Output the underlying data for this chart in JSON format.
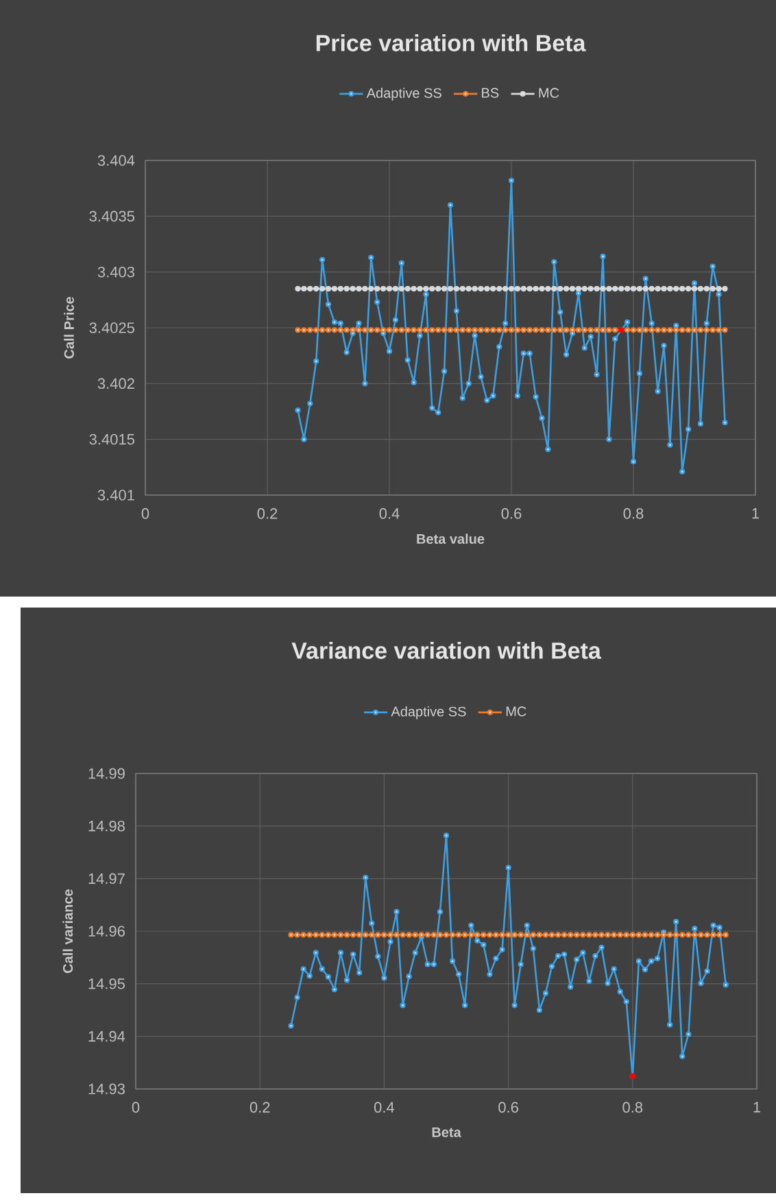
{
  "chart_data": [
    {
      "type": "line",
      "title": "Price  variation with Beta",
      "xlabel": "Beta value",
      "ylabel": "Call Price",
      "marker": "circle",
      "grid": true,
      "legend": "top",
      "xlim": [
        0,
        1
      ],
      "ylim": [
        3.401,
        3.404
      ],
      "xticks": [
        0,
        0.2,
        0.4,
        0.6,
        0.8,
        1
      ],
      "yticks": [
        3.401,
        3.4015,
        3.402,
        3.4025,
        3.403,
        3.4035,
        3.404
      ],
      "x": [
        0.25,
        0.26,
        0.27,
        0.28,
        0.29,
        0.3,
        0.31,
        0.32,
        0.33,
        0.34,
        0.35,
        0.36,
        0.37,
        0.38,
        0.39,
        0.4,
        0.41,
        0.42,
        0.43,
        0.44,
        0.45,
        0.46,
        0.47,
        0.48,
        0.49,
        0.5,
        0.51,
        0.52,
        0.53,
        0.54,
        0.55,
        0.56,
        0.57,
        0.58,
        0.59,
        0.6,
        0.61,
        0.62,
        0.63,
        0.64,
        0.65,
        0.66,
        0.67,
        0.68,
        0.69,
        0.7,
        0.71,
        0.72,
        0.73,
        0.74,
        0.75,
        0.76,
        0.77,
        0.78,
        0.79,
        0.8,
        0.81,
        0.82,
        0.83,
        0.84,
        0.85,
        0.86,
        0.87,
        0.88,
        0.89,
        0.9,
        0.91,
        0.92,
        0.93,
        0.94,
        0.95
      ],
      "series": [
        {
          "name": "Adaptive SS",
          "color": "#3d9ee0",
          "values": [
            3.40176,
            3.4015,
            3.40182,
            3.4022,
            3.40311,
            3.40271,
            3.40255,
            3.40254,
            3.40228,
            3.40245,
            3.40254,
            3.402,
            3.40313,
            3.40273,
            3.40245,
            3.40229,
            3.40257,
            3.40308,
            3.40221,
            3.40201,
            3.40243,
            3.4028,
            3.40178,
            3.40174,
            3.40211,
            3.4036,
            3.40265,
            3.40187,
            3.402,
            3.40243,
            3.40206,
            3.40185,
            3.40189,
            3.40233,
            3.40254,
            3.40382,
            3.40189,
            3.40227,
            3.40227,
            3.40188,
            3.40169,
            3.40141,
            3.40309,
            3.40264,
            3.40226,
            3.40245,
            3.40281,
            3.40232,
            3.40242,
            3.40208,
            3.40314,
            3.4015,
            3.4024,
            3.40248,
            3.40255,
            3.4013,
            3.40209,
            3.40294,
            3.40254,
            3.40193,
            3.40234,
            3.40145,
            3.40252,
            3.40121,
            3.40159,
            3.4029,
            3.40164,
            3.40254,
            3.40305,
            3.4028,
            3.40165
          ]
        },
        {
          "name": "BS",
          "color": "#f07c28",
          "values": [
            3.40248,
            3.40248,
            3.40248,
            3.40248,
            3.40248,
            3.40248,
            3.40248,
            3.40248,
            3.40248,
            3.40248,
            3.40248,
            3.40248,
            3.40248,
            3.40248,
            3.40248,
            3.40248,
            3.40248,
            3.40248,
            3.40248,
            3.40248,
            3.40248,
            3.40248,
            3.40248,
            3.40248,
            3.40248,
            3.40248,
            3.40248,
            3.40248,
            3.40248,
            3.40248,
            3.40248,
            3.40248,
            3.40248,
            3.40248,
            3.40248,
            3.40248,
            3.40248,
            3.40248,
            3.40248,
            3.40248,
            3.40248,
            3.40248,
            3.40248,
            3.40248,
            3.40248,
            3.40248,
            3.40248,
            3.40248,
            3.40248,
            3.40248,
            3.40248,
            3.40248,
            3.40248,
            3.40248,
            3.40248,
            3.40248,
            3.40248,
            3.40248,
            3.40248,
            3.40248,
            3.40248,
            3.40248,
            3.40248,
            3.40248,
            3.40248,
            3.40248,
            3.40248,
            3.40248,
            3.40248,
            3.40248,
            3.40248
          ],
          "colors": [
            "#f07c28",
            "#f07c28",
            "#f07c28",
            "#f07c28",
            "#f07c28",
            "#f07c28",
            "#f07c28",
            "#f07c28",
            "#f07c28",
            "#f07c28",
            "#f07c28",
            "#f07c28",
            "#f07c28",
            "#f07c28",
            "#f07c28",
            "#f07c28",
            "#f07c28",
            "#f07c28",
            "#f07c28",
            "#f07c28",
            "#f07c28",
            "#f07c28",
            "#f07c28",
            "#f07c28",
            "#f07c28",
            "#f07c28",
            "#f07c28",
            "#f07c28",
            "#f07c28",
            "#f07c28",
            "#f07c28",
            "#f07c28",
            "#f07c28",
            "#f07c28",
            "#f07c28",
            "#f07c28",
            "#f07c28",
            "#f07c28",
            "#f07c28",
            "#f07c28",
            "#f07c28",
            "#f07c28",
            "#f07c28",
            "#f07c28",
            "#f07c28",
            "#f07c28",
            "#f07c28",
            "#f07c28",
            "#f07c28",
            "#f07c28",
            "#f07c28",
            "#f07c28",
            "#f07c28",
            "#ff0000",
            "#f07c28",
            "#f07c28",
            "#f07c28",
            "#f07c28",
            "#f07c28",
            "#f07c28",
            "#f07c28",
            "#f07c28",
            "#f07c28",
            "#f07c28",
            "#f07c28",
            "#f07c28",
            "#f07c28",
            "#f07c28",
            "#f07c28",
            "#f07c28",
            "#f07c28"
          ]
        },
        {
          "name": "MC",
          "color": "#d9d9d9",
          "values": [
            3.40285,
            3.40285,
            3.40285,
            3.40285,
            3.40285,
            3.40285,
            3.40285,
            3.40285,
            3.40285,
            3.40285,
            3.40285,
            3.40285,
            3.40285,
            3.40285,
            3.40285,
            3.40285,
            3.40285,
            3.40285,
            3.40285,
            3.40285,
            3.40285,
            3.40285,
            3.40285,
            3.40285,
            3.40285,
            3.40285,
            3.40285,
            3.40285,
            3.40285,
            3.40285,
            3.40285,
            3.40285,
            3.40285,
            3.40285,
            3.40285,
            3.40285,
            3.40285,
            3.40285,
            3.40285,
            3.40285,
            3.40285,
            3.40285,
            3.40285,
            3.40285,
            3.40285,
            3.40285,
            3.40285,
            3.40285,
            3.40285,
            3.40285,
            3.40285,
            3.40285,
            3.40285,
            3.40285,
            3.40285,
            3.40285,
            3.40285,
            3.40285,
            3.40285,
            3.40285,
            3.40285,
            3.40285,
            3.40285,
            3.40285,
            3.40285,
            3.40285,
            3.40285,
            3.40285,
            3.40285,
            3.40285,
            3.40285
          ]
        }
      ]
    },
    {
      "type": "line",
      "title": "Variance variation with Beta",
      "xlabel": "Beta",
      "ylabel": "Call variance",
      "marker": "circle",
      "grid": true,
      "legend": "top",
      "xlim": [
        0,
        1
      ],
      "ylim": [
        14.93,
        14.99
      ],
      "xticks": [
        0,
        0.2,
        0.4,
        0.6,
        0.8,
        1
      ],
      "yticks": [
        14.93,
        14.94,
        14.95,
        14.96,
        14.97,
        14.98,
        14.99
      ],
      "x": [
        0.25,
        0.26,
        0.27,
        0.28,
        0.29,
        0.3,
        0.31,
        0.32,
        0.33,
        0.34,
        0.35,
        0.36,
        0.37,
        0.38,
        0.39,
        0.4,
        0.41,
        0.42,
        0.43,
        0.44,
        0.45,
        0.46,
        0.47,
        0.48,
        0.49,
        0.5,
        0.51,
        0.52,
        0.53,
        0.54,
        0.55,
        0.56,
        0.57,
        0.58,
        0.59,
        0.6,
        0.61,
        0.62,
        0.63,
        0.64,
        0.65,
        0.66,
        0.67,
        0.68,
        0.69,
        0.7,
        0.71,
        0.72,
        0.73,
        0.74,
        0.75,
        0.76,
        0.77,
        0.78,
        0.79,
        0.8,
        0.81,
        0.82,
        0.83,
        0.84,
        0.85,
        0.86,
        0.87,
        0.88,
        0.89,
        0.9,
        0.91,
        0.92,
        0.93,
        0.94,
        0.95
      ],
      "series": [
        {
          "name": "Adaptive SS",
          "color": "#3d9ee0",
          "values": [
            14.942,
            14.9474,
            14.9528,
            14.9515,
            14.9559,
            14.9528,
            14.9513,
            14.9489,
            14.9559,
            14.9507,
            14.9556,
            14.9521,
            14.9702,
            14.9615,
            14.9552,
            14.9511,
            14.958,
            14.9637,
            14.9459,
            14.9514,
            14.9559,
            14.9589,
            14.9537,
            14.9537,
            14.9637,
            14.9782,
            14.9543,
            14.9518,
            14.9459,
            14.9611,
            14.9582,
            14.9574,
            14.9518,
            14.9548,
            14.9565,
            14.9721,
            14.9459,
            14.9537,
            14.9611,
            14.9567,
            14.945,
            14.9482,
            14.9533,
            14.9553,
            14.9556,
            14.9494,
            14.9546,
            14.9559,
            14.9505,
            14.9553,
            14.9569,
            14.9501,
            14.9528,
            14.9485,
            14.9466,
            14.9324,
            14.9543,
            14.9527,
            14.9543,
            14.9548,
            14.9598,
            14.9422,
            14.9618,
            14.9362,
            14.9404,
            14.9605,
            14.9501,
            14.9524,
            14.9611,
            14.9607,
            14.9498
          ],
          "colors": [
            "#3d9ee0",
            "#3d9ee0",
            "#3d9ee0",
            "#3d9ee0",
            "#3d9ee0",
            "#3d9ee0",
            "#3d9ee0",
            "#3d9ee0",
            "#3d9ee0",
            "#3d9ee0",
            "#3d9ee0",
            "#3d9ee0",
            "#3d9ee0",
            "#3d9ee0",
            "#3d9ee0",
            "#3d9ee0",
            "#3d9ee0",
            "#3d9ee0",
            "#3d9ee0",
            "#3d9ee0",
            "#3d9ee0",
            "#3d9ee0",
            "#3d9ee0",
            "#3d9ee0",
            "#3d9ee0",
            "#3d9ee0",
            "#3d9ee0",
            "#3d9ee0",
            "#3d9ee0",
            "#3d9ee0",
            "#3d9ee0",
            "#3d9ee0",
            "#3d9ee0",
            "#3d9ee0",
            "#3d9ee0",
            "#3d9ee0",
            "#3d9ee0",
            "#3d9ee0",
            "#3d9ee0",
            "#3d9ee0",
            "#3d9ee0",
            "#3d9ee0",
            "#3d9ee0",
            "#3d9ee0",
            "#3d9ee0",
            "#3d9ee0",
            "#3d9ee0",
            "#3d9ee0",
            "#3d9ee0",
            "#3d9ee0",
            "#3d9ee0",
            "#3d9ee0",
            "#3d9ee0",
            "#3d9ee0",
            "#3d9ee0",
            "#ff0000",
            "#3d9ee0",
            "#3d9ee0",
            "#3d9ee0",
            "#3d9ee0",
            "#3d9ee0",
            "#3d9ee0",
            "#3d9ee0",
            "#3d9ee0",
            "#3d9ee0",
            "#3d9ee0",
            "#3d9ee0",
            "#3d9ee0",
            "#3d9ee0",
            "#3d9ee0",
            "#3d9ee0"
          ]
        },
        {
          "name": "MC",
          "color": "#f07c28",
          "values": [
            14.9593,
            14.9593,
            14.9593,
            14.9593,
            14.9593,
            14.9593,
            14.9593,
            14.9593,
            14.9593,
            14.9593,
            14.9593,
            14.9593,
            14.9593,
            14.9593,
            14.9593,
            14.9593,
            14.9593,
            14.9593,
            14.9593,
            14.9593,
            14.9593,
            14.9593,
            14.9593,
            14.9593,
            14.9593,
            14.9593,
            14.9593,
            14.9593,
            14.9593,
            14.9593,
            14.9593,
            14.9593,
            14.9593,
            14.9593,
            14.9593,
            14.9593,
            14.9593,
            14.9593,
            14.9593,
            14.9593,
            14.9593,
            14.9593,
            14.9593,
            14.9593,
            14.9593,
            14.9593,
            14.9593,
            14.9593,
            14.9593,
            14.9593,
            14.9593,
            14.9593,
            14.9593,
            14.9593,
            14.9593,
            14.9593,
            14.9593,
            14.9593,
            14.9593,
            14.9593,
            14.9593,
            14.9593,
            14.9593,
            14.9593,
            14.9593,
            14.9593,
            14.9593,
            14.9593,
            14.9593,
            14.9593,
            14.9593
          ]
        }
      ]
    }
  ]
}
